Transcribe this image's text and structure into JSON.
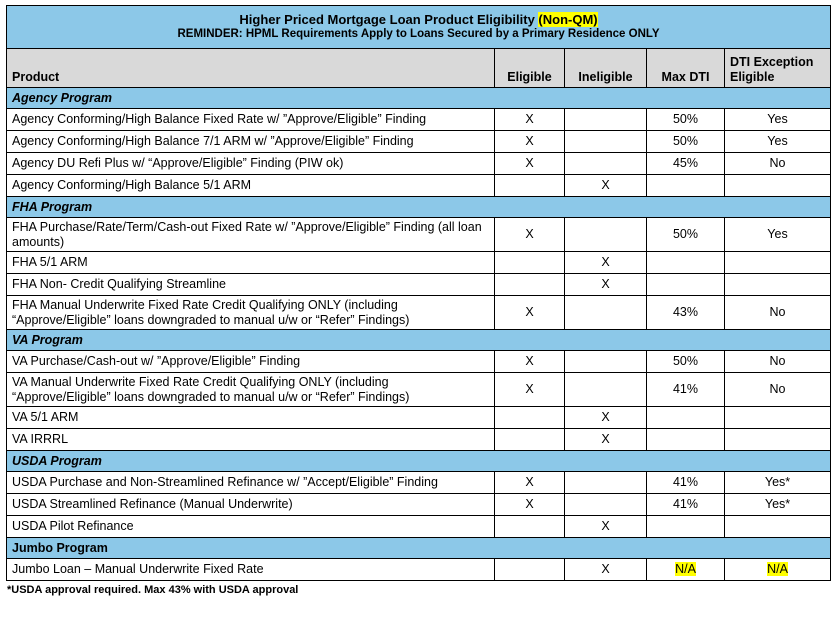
{
  "title": {
    "main_prefix": "Higher Priced Mortgage Loan Product Eligibility ",
    "main_highlight": "(Non-QM)",
    "reminder": "REMINDER: HPML Requirements Apply to Loans Secured by a Primary Residence ONLY"
  },
  "headers": {
    "product": "Product",
    "eligible": "Eligible",
    "ineligible": "Ineligible",
    "max_dti": "Max DTI",
    "dti_exception_1": "DTI Exception",
    "dti_exception_2": "Eligible"
  },
  "sections": [
    {
      "name": "Agency Program",
      "rows": [
        {
          "product": "Agency Conforming/High Balance Fixed Rate w/ ”Approve/Eligible” Finding",
          "eligible": "X",
          "ineligible": "",
          "max_dti": "50%",
          "dti_exception": "Yes"
        },
        {
          "product": "Agency Conforming/High Balance 7/1 ARM w/ ”Approve/Eligible” Finding",
          "eligible": "X",
          "ineligible": "",
          "max_dti": "50%",
          "dti_exception": "Yes"
        },
        {
          "product": "Agency DU Refi Plus w/ “Approve/Eligible” Finding (PIW ok)",
          "eligible": "X",
          "ineligible": "",
          "max_dti": "45%",
          "dti_exception": "No"
        },
        {
          "product": "Agency Conforming/High Balance 5/1 ARM",
          "eligible": "",
          "ineligible": "X",
          "max_dti": "",
          "dti_exception": ""
        }
      ]
    },
    {
      "name": "FHA Program",
      "rows": [
        {
          "product": "FHA Purchase/Rate/Term/Cash-out Fixed Rate w/ ”Approve/Eligible” Finding (all loan amounts)",
          "eligible": "X",
          "ineligible": "",
          "max_dti": "50%",
          "dti_exception": "Yes",
          "tall": true
        },
        {
          "product": "FHA  5/1 ARM",
          "eligible": "",
          "ineligible": "X",
          "max_dti": "",
          "dti_exception": ""
        },
        {
          "product": "FHA Non- Credit Qualifying Streamline",
          "eligible": "",
          "ineligible": "X",
          "max_dti": "",
          "dti_exception": ""
        },
        {
          "product": "FHA Manual Underwrite Fixed Rate Credit Qualifying ONLY (including “Approve/Eligible” loans downgraded to manual u/w or “Refer”  Findings)",
          "eligible": "X",
          "ineligible": "",
          "max_dti": "43%",
          "dti_exception": "No",
          "tall": true
        }
      ]
    },
    {
      "name": "VA Program",
      "rows": [
        {
          "product": "VA Purchase/Cash-out w/ ”Approve/Eligible” Finding",
          "eligible": "X",
          "ineligible": "",
          "max_dti": "50%",
          "dti_exception": "No"
        },
        {
          "product": "VA Manual Underwrite Fixed Rate Credit Qualifying ONLY (including “Approve/Eligible” loans downgraded to manual u/w or “Refer”  Findings)",
          "eligible": "X",
          "ineligible": "",
          "max_dti": "41%",
          "dti_exception": "No",
          "tall": true
        },
        {
          "product": "VA 5/1 ARM",
          "eligible": "",
          "ineligible": "X",
          "max_dti": "",
          "dti_exception": ""
        },
        {
          "product": "VA IRRRL",
          "eligible": "",
          "ineligible": "X",
          "max_dti": "",
          "dti_exception": ""
        }
      ]
    },
    {
      "name": "USDA Program",
      "rows": [
        {
          "product": "USDA Purchase and Non-Streamlined Refinance w/ ”Accept/Eligible” Finding",
          "eligible": "X",
          "ineligible": "",
          "max_dti": "41%",
          "dti_exception": "Yes*"
        },
        {
          "product": "USDA Streamlined Refinance (Manual Underwrite)",
          "eligible": "X",
          "ineligible": "",
          "max_dti": "41%",
          "dti_exception": "Yes*"
        },
        {
          "product": "USDA Pilot Refinance",
          "eligible": "",
          "ineligible": "X",
          "max_dti": "",
          "dti_exception": ""
        }
      ]
    },
    {
      "name": "Jumbo Program",
      "plain": true,
      "rows": [
        {
          "product": "Jumbo Loan – Manual Underwrite Fixed Rate",
          "eligible": "",
          "ineligible": "X",
          "max_dti": "N/A",
          "dti_exception": "N/A",
          "highlight": true
        }
      ]
    }
  ],
  "footnote": "*USDA approval required. Max 43% with USDA approval",
  "colors": {
    "header_blue": "#8cc8e8",
    "header_gray": "#d9d9d9",
    "highlight": "#ffff00"
  }
}
